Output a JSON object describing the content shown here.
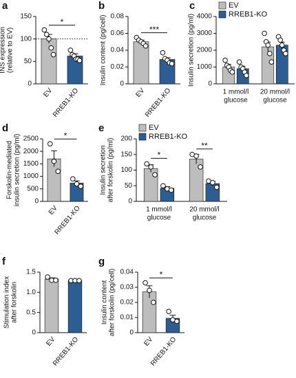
{
  "chart_data": [
    {
      "type": "bar",
      "label": "a",
      "ylabel": [
        "INS expression",
        "(relative to EV)"
      ],
      "categories": [
        "EV",
        "RREB1-KO"
      ],
      "colors": [
        "#bdbdbd",
        "#2b5f93"
      ],
      "values": [
        100,
        62
      ],
      "errors": [
        10,
        5
      ],
      "points": [
        [
          120,
          110,
          100,
          80,
          65
        ],
        [
          75,
          65,
          62,
          55,
          55,
          52
        ]
      ],
      "ylim": [
        0,
        150
      ],
      "yticks": [
        0,
        50,
        100,
        150
      ],
      "reference_line": 100,
      "significance": "*"
    },
    {
      "type": "bar",
      "label": "b",
      "ylabel": [
        "Insulin content (pg/cell)"
      ],
      "categories": [
        "EV",
        "RREB1-KO"
      ],
      "colors": [
        "#bdbdbd",
        "#2b5f93"
      ],
      "values": [
        0.05,
        0.029
      ],
      "errors": [
        0.002,
        0.002
      ],
      "points": [
        [
          0.055,
          0.052,
          0.05,
          0.048,
          0.045
        ],
        [
          0.037,
          0.03,
          0.028,
          0.025,
          0.024
        ]
      ],
      "ylim": [
        0,
        0.08
      ],
      "yticks": [
        0,
        0.02,
        0.04,
        0.06,
        0.08
      ],
      "significance": "***"
    },
    {
      "type": "grouped_bar",
      "label": "c",
      "ylabel": [
        "Insulin secretion (pg/ml)"
      ],
      "categories": [
        [
          "1 mmol/l",
          "glucose"
        ],
        [
          "20 mmol/l",
          "glucose"
        ]
      ],
      "series": [
        {
          "name": "EV",
          "color": "#bdbdbd",
          "values": [
            1000,
            2200
          ],
          "errors": [
            150,
            280
          ],
          "points": [
            [
              1400,
              1100,
              1000,
              800,
              700
            ],
            [
              3000,
              2500,
              2300,
              1800,
              1300
            ]
          ]
        },
        {
          "name": "RREB1-KO",
          "color": "#2b5f93",
          "values": [
            900,
            2300
          ],
          "errors": [
            150,
            180
          ],
          "points": [
            [
              1300,
              1000,
              900,
              700,
              500
            ],
            [
              2800,
              2600,
              2300,
              2000,
              1800
            ]
          ]
        }
      ],
      "ylim": [
        0,
        4000
      ],
      "yticks": [
        0,
        1000,
        2000,
        3000,
        4000
      ]
    },
    {
      "type": "bar",
      "label": "d",
      "ylabel": [
        "Forskolin-mediated",
        "insulin secretion (pg/ml)"
      ],
      "categories": [
        "EV",
        "RREB1-KO"
      ],
      "colors": [
        "#bdbdbd",
        "#2b5f93"
      ],
      "values": [
        1700,
        730
      ],
      "errors": [
        320,
        90
      ],
      "points": [
        [
          2300,
          1600,
          1200
        ],
        [
          900,
          700,
          600
        ]
      ],
      "ylim": [
        0,
        2500
      ],
      "yticks": [
        0,
        500,
        1000,
        1500,
        2000,
        2500
      ],
      "significance": "*"
    },
    {
      "type": "grouped_bar",
      "label": "e",
      "ylabel": [
        "Insulin secretion",
        "after forskolin (pg/ml)"
      ],
      "categories": [
        [
          "1 mmol/l",
          "glucose"
        ],
        [
          "20 mmol/l",
          "glucose"
        ]
      ],
      "series": [
        {
          "name": "EV",
          "color": "#bdbdbd",
          "values": [
            105,
            135
          ],
          "errors": [
            12,
            15
          ],
          "points": [
            [
              120,
              110,
              85
            ],
            [
              150,
              145,
              110
            ]
          ]
        },
        {
          "name": "RREB1-KO",
          "color": "#2b5f93",
          "values": [
            42,
            57
          ],
          "errors": [
            5,
            7
          ],
          "points": [
            [
              50,
              40,
              36
            ],
            [
              65,
              60,
              45
            ]
          ]
        }
      ],
      "ylim": [
        0,
        200
      ],
      "yticks": [
        0,
        50,
        100,
        150,
        200
      ],
      "significance": [
        "*",
        "**"
      ]
    },
    {
      "type": "bar",
      "label": "f",
      "ylabel": [
        "Stimulation index",
        "after forskolin"
      ],
      "categories": [
        "EV",
        "RREB1-KO"
      ],
      "colors": [
        "#bdbdbd",
        "#2b5f93"
      ],
      "values": [
        1.33,
        1.29
      ],
      "errors": [
        0.03,
        0.01
      ],
      "points": [
        [
          1.38,
          1.3,
          1.3
        ],
        [
          1.29,
          1.29,
          1.29
        ]
      ],
      "ylim": [
        0,
        1.5
      ],
      "yticks": [
        0,
        0.5,
        {
          "value": 1,
          "label": "1.0"
        },
        1.5
      ]
    },
    {
      "type": "bar",
      "label": "g",
      "ylabel": [
        "Insulin content",
        "after forskolin (pg/cell)"
      ],
      "categories": [
        "EV",
        "RREB1-KO"
      ],
      "colors": [
        "#bdbdbd",
        "#2b5f93"
      ],
      "values": [
        0.027,
        0.0095
      ],
      "errors": [
        0.004,
        0.002
      ],
      "points": [
        [
          0.033,
          0.028,
          0.02
        ],
        [
          0.014,
          0.0085,
          0.0075
        ]
      ],
      "ylim": [
        0,
        0.04
      ],
      "yticks": [
        0,
        0.01,
        0.02,
        0.03,
        0.04
      ],
      "significance": "*"
    }
  ]
}
